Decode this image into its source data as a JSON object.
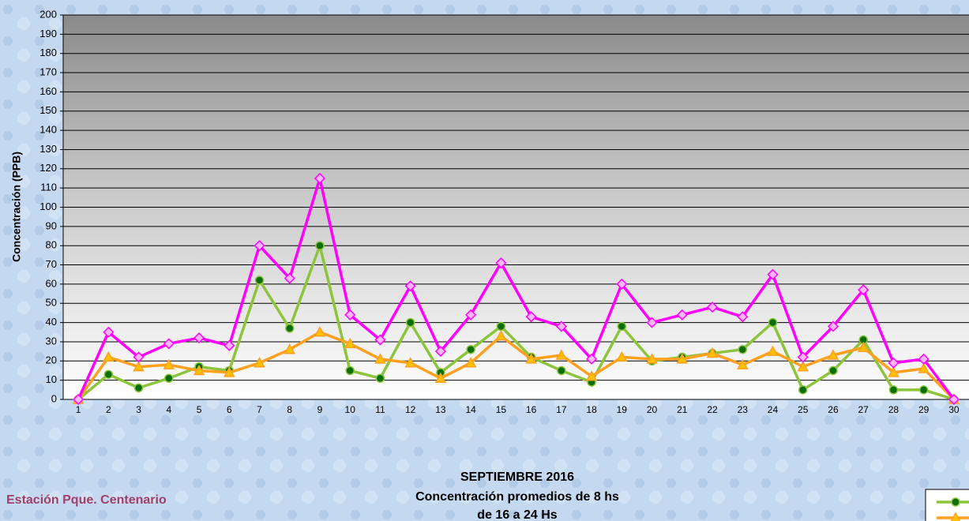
{
  "chart_data": {
    "type": "line",
    "title": "SEPTIEMBRE 2016",
    "subtitle": [
      "Concentración promedios de 8 hs",
      "de 16 a 24 Hs"
    ],
    "annotations": [
      "Estación Pque. Centenario"
    ],
    "ylabel": "Concentración  (PPB)",
    "categories": [
      1,
      2,
      3,
      4,
      5,
      6,
      7,
      8,
      9,
      10,
      11,
      12,
      13,
      14,
      15,
      16,
      17,
      18,
      19,
      20,
      21,
      22,
      23,
      24,
      25,
      26,
      27,
      28,
      29,
      30
    ],
    "series": [
      {
        "color": "#8cc43c",
        "marker": "circle",
        "values": [
          0,
          13,
          6,
          11,
          17,
          15,
          62,
          37,
          80,
          15,
          11,
          40,
          14,
          26,
          38,
          22,
          15,
          9,
          38,
          20,
          22,
          24,
          26,
          40,
          5,
          15,
          31,
          5,
          5,
          0
        ]
      },
      {
        "color": "#ffa020",
        "marker": "triangle",
        "values": [
          0,
          22,
          17,
          18,
          15,
          14,
          19,
          26,
          35,
          29,
          21,
          19,
          11,
          19,
          33,
          21,
          23,
          12,
          22,
          21,
          21,
          24,
          18,
          25,
          17,
          23,
          27,
          14,
          16,
          0
        ]
      },
      {
        "color": "#ff00ff",
        "marker": "diamond",
        "values": [
          0,
          35,
          22,
          29,
          32,
          28,
          80,
          63,
          115,
          44,
          31,
          59,
          25,
          44,
          71,
          43,
          38,
          21,
          60,
          40,
          44,
          48,
          43,
          65,
          22,
          38,
          57,
          19,
          21,
          0
        ]
      }
    ],
    "ylim": [
      0,
      200
    ],
    "yticks": [
      0,
      10,
      20,
      30,
      40,
      50,
      60,
      70,
      80,
      90,
      100,
      110,
      120,
      130,
      140,
      150,
      160,
      170,
      180,
      190,
      200
    ],
    "grid": true
  }
}
